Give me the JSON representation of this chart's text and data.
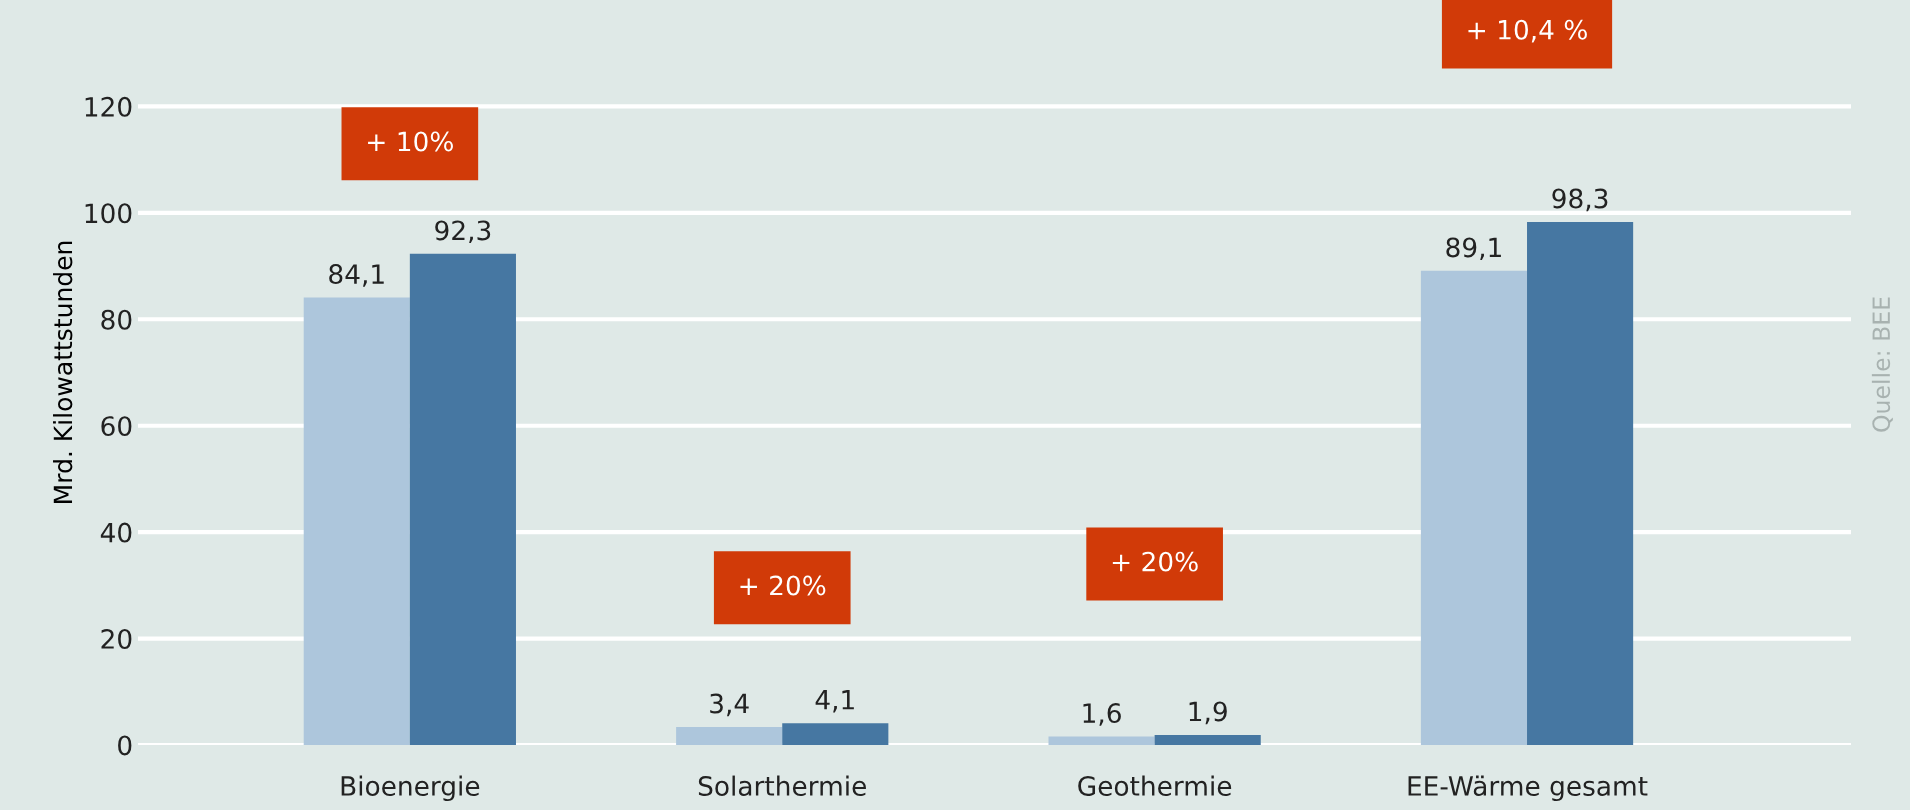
{
  "chart_data": {
    "type": "bar",
    "ylabel": "Mrd. Kilowattstunden",
    "categories": [
      "Bioenergie",
      "Solarthermie",
      "Geothermie",
      "EE-Wärme gesamt"
    ],
    "series": [
      {
        "color": "#adc6dc",
        "values": [
          84.1,
          3.4,
          1.6,
          89.1
        ],
        "value_labels": [
          "84,1",
          "3,4",
          "1,6",
          "89,1"
        ]
      },
      {
        "color": "#4677a2",
        "values": [
          92.3,
          4.1,
          1.9,
          98.3
        ],
        "value_labels": [
          "92,3",
          "4,1",
          "1,9",
          "98,3"
        ]
      }
    ],
    "ylim": [
      0,
      140
    ],
    "yticks": [
      0,
      20,
      40,
      60,
      80,
      100,
      120
    ],
    "grid": "y",
    "legend": false,
    "annotations": [
      "+ 10%",
      "+ 20%",
      "+ 20%",
      "+ 10,4 %",
      "Quelle: BEE"
    ]
  }
}
